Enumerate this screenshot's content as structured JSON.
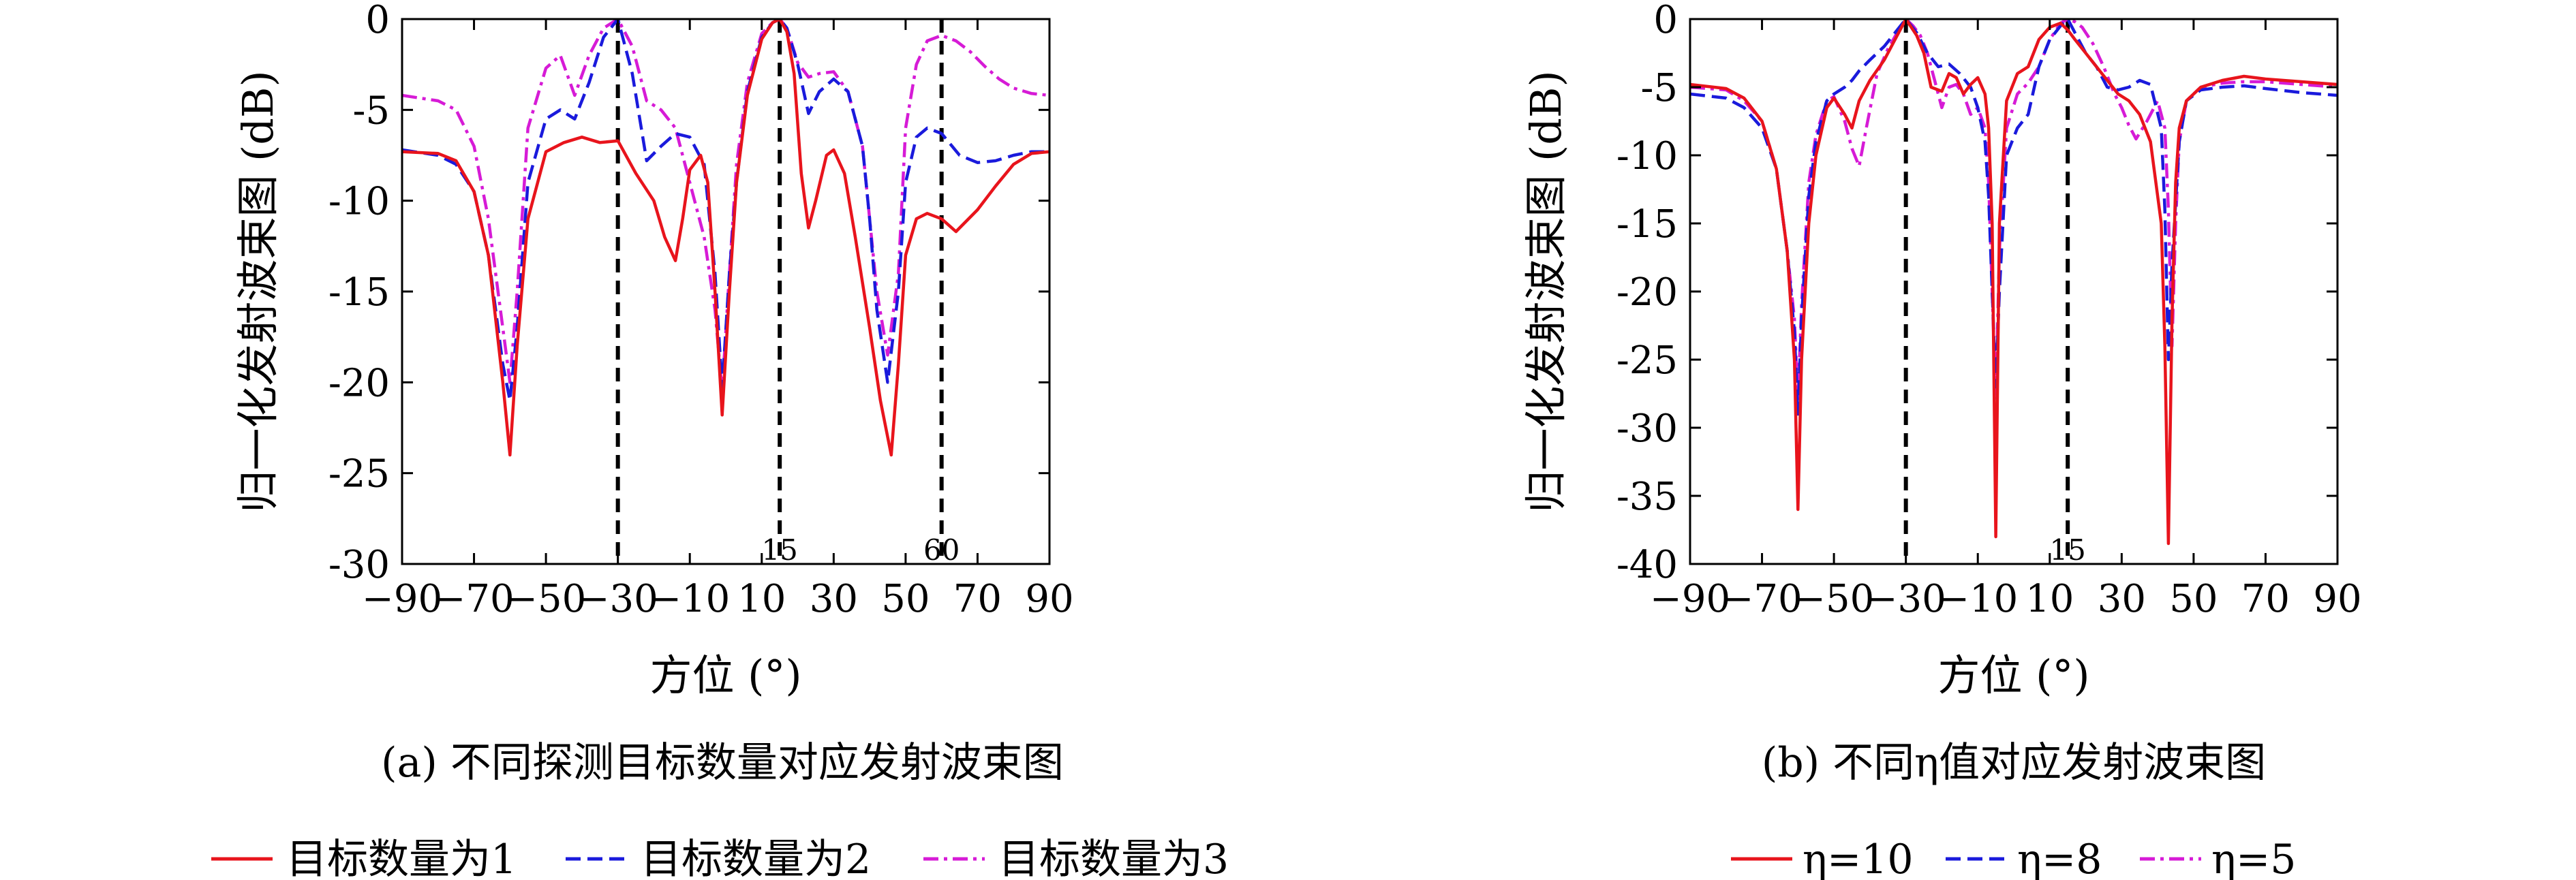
{
  "chart_data": [
    {
      "type": "line",
      "caption": "(a) 不同探测目标数量对应发射波束图",
      "xlabel": "方位 (°)",
      "ylabel": "归一化发射波束图 (dB)",
      "xlim": [
        -90,
        90
      ],
      "ylim": [
        -30,
        0
      ],
      "xticks": [
        -90,
        -70,
        -50,
        -30,
        -10,
        10,
        30,
        50,
        70,
        90
      ],
      "xtick_labels": [
        "−90",
        "−70",
        "−50",
        "−30",
        "−10",
        "10",
        "30",
        "50",
        "70",
        "90"
      ],
      "yticks": [
        0,
        -5,
        -10,
        -15,
        -20,
        -25,
        -30
      ],
      "ytick_labels": [
        "0",
        "-5",
        "-10",
        "-15",
        "-20",
        "-25",
        "-30"
      ],
      "target_lines": [
        {
          "x": -30,
          "label": ""
        },
        {
          "x": 15,
          "label": "15"
        },
        {
          "x": 60,
          "label": "60"
        }
      ],
      "series": [
        {
          "name": "目标数量为1",
          "color": "#e8141c",
          "style": "solid",
          "x": [
            -90,
            -80,
            -75,
            -70,
            -66,
            -62,
            -60,
            -58,
            -55,
            -50,
            -45,
            -40,
            -35,
            -30,
            -25,
            -20,
            -17,
            -14,
            -12,
            -10,
            -7,
            -5,
            -3,
            -1,
            1,
            3,
            6,
            10,
            13,
            15,
            17,
            19,
            21,
            23,
            25,
            28,
            30,
            33,
            36,
            40,
            43,
            46,
            48,
            50,
            53,
            56,
            60,
            64,
            70,
            75,
            80,
            85,
            90
          ],
          "y": [
            -7.3,
            -7.4,
            -7.8,
            -9.5,
            -13,
            -20,
            -24,
            -18,
            -11,
            -7.3,
            -6.8,
            -6.5,
            -6.8,
            -6.7,
            -8.5,
            -10,
            -12,
            -13.3,
            -11,
            -8.3,
            -7.5,
            -9,
            -15,
            -21.8,
            -15,
            -9,
            -4.2,
            -1.1,
            -0.2,
            0,
            -0.7,
            -3,
            -8.5,
            -11.5,
            -10,
            -7.5,
            -7.2,
            -8.5,
            -12,
            -17,
            -21,
            -24,
            -19,
            -13,
            -11,
            -10.7,
            -11,
            -11.7,
            -10.5,
            -9.2,
            -8,
            -7.4,
            -7.3
          ]
        },
        {
          "name": "目标数量为2",
          "color": "#1a1adc",
          "style": "dashed",
          "x": [
            -90,
            -80,
            -75,
            -70,
            -66,
            -62,
            -60,
            -58,
            -55,
            -50,
            -46,
            -42,
            -38,
            -34,
            -30,
            -26,
            -22,
            -18,
            -14,
            -10,
            -6,
            -3,
            -1,
            1,
            3,
            6,
            10,
            13,
            15,
            17,
            20,
            23,
            26,
            30,
            34,
            38,
            40,
            42,
            45,
            48,
            50,
            53,
            56,
            60,
            65,
            70,
            75,
            80,
            85,
            90
          ],
          "y": [
            -7.2,
            -7.5,
            -8,
            -9.5,
            -13,
            -19,
            -21,
            -17,
            -9,
            -5.5,
            -5,
            -5.5,
            -3.5,
            -1,
            0,
            -3,
            -7.8,
            -7,
            -6.3,
            -6.5,
            -8,
            -14,
            -20.3,
            -14,
            -9,
            -4,
            -1,
            -0.2,
            0,
            -0.5,
            -2.5,
            -5.2,
            -4,
            -3.3,
            -4,
            -7,
            -11,
            -16,
            -20,
            -15,
            -9,
            -6.5,
            -6,
            -6.3,
            -7.5,
            -7.9,
            -7.8,
            -7.5,
            -7.3,
            -7.3
          ]
        },
        {
          "name": "目标数量为3",
          "color": "#d61bd6",
          "style": "dashdot",
          "x": [
            -90,
            -80,
            -75,
            -70,
            -66,
            -62,
            -60,
            -58,
            -55,
            -50,
            -46,
            -42,
            -38,
            -34,
            -30,
            -26,
            -22,
            -18,
            -14,
            -10,
            -6,
            -3,
            -1,
            1,
            3,
            6,
            10,
            13,
            15,
            17,
            20,
            23,
            26,
            30,
            34,
            38,
            40,
            42,
            45,
            48,
            50,
            53,
            56,
            60,
            64,
            68,
            72,
            76,
            80,
            85,
            90
          ],
          "y": [
            -4.2,
            -4.5,
            -5,
            -7,
            -11,
            -17,
            -20,
            -15,
            -6,
            -2.7,
            -2,
            -4.2,
            -2,
            -0.5,
            0,
            -1.5,
            -4.5,
            -5,
            -6,
            -9,
            -12,
            -16,
            -20.5,
            -14,
            -8,
            -3.5,
            -0.8,
            -0.2,
            0,
            -0.5,
            -2.4,
            -3.2,
            -3,
            -2.9,
            -4,
            -7,
            -11,
            -15,
            -18.5,
            -14,
            -6,
            -2.5,
            -1.2,
            -0.9,
            -1.2,
            -1.8,
            -2.6,
            -3.3,
            -3.8,
            -4.1,
            -4.2
          ]
        }
      ]
    },
    {
      "type": "line",
      "caption": "(b) 不同η值对应发射波束图",
      "xlabel": "方位 (°)",
      "ylabel": "归一化发射波束图 (dB)",
      "xlim": [
        -90,
        90
      ],
      "ylim": [
        -40,
        0
      ],
      "xticks": [
        -90,
        -70,
        -50,
        -30,
        -10,
        10,
        30,
        50,
        70,
        90
      ],
      "xtick_labels": [
        "−90",
        "−70",
        "−50",
        "−30",
        "−10",
        "10",
        "30",
        "50",
        "70",
        "90"
      ],
      "yticks": [
        0,
        -5,
        -10,
        -15,
        -20,
        -25,
        -30,
        -35,
        -40
      ],
      "ytick_labels": [
        "0",
        "-5",
        "-10",
        "-15",
        "-20",
        "-25",
        "-30",
        "-35",
        "-40"
      ],
      "target_lines": [
        {
          "x": -30,
          "label": ""
        },
        {
          "x": 15,
          "label": "15"
        }
      ],
      "series": [
        {
          "name": "η=10",
          "color": "#e8141c",
          "style": "solid",
          "x": [
            -90,
            -80,
            -75,
            -70,
            -66,
            -63,
            -61,
            -60,
            -59,
            -57,
            -55,
            -52,
            -50,
            -47,
            -45,
            -43,
            -40,
            -36,
            -33,
            -30,
            -27,
            -25,
            -23,
            -20,
            -18,
            -16,
            -14,
            -12,
            -10,
            -8,
            -7,
            -6,
            -5,
            -4,
            -2,
            1,
            4,
            7,
            10,
            13,
            15,
            17,
            20,
            23,
            26,
            29,
            32,
            35,
            38,
            41,
            42,
            43,
            44,
            45,
            46,
            48,
            52,
            58,
            64,
            70,
            80,
            90
          ],
          "y": [
            -4.8,
            -5.1,
            -5.8,
            -7.5,
            -11,
            -17,
            -25,
            -36,
            -25,
            -15,
            -10,
            -6.5,
            -5.8,
            -7,
            -8,
            -6,
            -4.5,
            -3,
            -1.5,
            0,
            -1.2,
            -2.5,
            -5,
            -5.3,
            -4,
            -4.3,
            -5.5,
            -4.8,
            -4.3,
            -5.5,
            -8,
            -15,
            -38,
            -15,
            -6,
            -4,
            -3.5,
            -1.5,
            -0.6,
            -0.3,
            -0.8,
            -1.5,
            -2.5,
            -3.5,
            -4.5,
            -5.5,
            -6,
            -7,
            -9,
            -15,
            -24,
            -38.5,
            -22,
            -12,
            -8,
            -6,
            -5,
            -4.5,
            -4.2,
            -4.4,
            -4.6,
            -4.8
          ]
        },
        {
          "name": "η=8",
          "color": "#1a1adc",
          "style": "dashed",
          "x": [
            -90,
            -80,
            -75,
            -70,
            -66,
            -63,
            -61,
            -60,
            -59,
            -57,
            -55,
            -52,
            -50,
            -47,
            -45,
            -43,
            -40,
            -36,
            -33,
            -30,
            -27,
            -24,
            -21,
            -18,
            -15,
            -12,
            -10,
            -8,
            -7,
            -6,
            -5,
            -4,
            -2,
            1,
            4,
            7,
            10,
            13,
            15,
            17,
            20,
            23,
            26,
            29,
            32,
            35,
            38,
            41,
            42,
            43,
            44,
            46,
            48,
            52,
            58,
            64,
            70,
            80,
            90
          ],
          "y": [
            -5.5,
            -5.8,
            -6.5,
            -8,
            -11,
            -17,
            -23,
            -29,
            -22,
            -13,
            -9,
            -6,
            -5.5,
            -5,
            -4.5,
            -3.8,
            -3,
            -2,
            -1,
            0,
            -1,
            -2.5,
            -3.5,
            -3.3,
            -4,
            -5,
            -6.5,
            -9,
            -13,
            -20,
            -27,
            -20,
            -10,
            -8,
            -7,
            -3.5,
            -1.5,
            -0.5,
            0,
            -1,
            -2.5,
            -3.5,
            -5,
            -5.2,
            -5,
            -4.5,
            -4.8,
            -8,
            -14,
            -25,
            -18,
            -9,
            -6,
            -5.2,
            -5,
            -4.9,
            -5.1,
            -5.4,
            -5.6
          ]
        },
        {
          "name": "η=5",
          "color": "#d61bd6",
          "style": "dashdot",
          "x": [
            -90,
            -80,
            -75,
            -70,
            -66,
            -63,
            -61,
            -60,
            -59,
            -57,
            -55,
            -52,
            -50,
            -47,
            -45,
            -43,
            -41,
            -38,
            -35,
            -32,
            -30,
            -28,
            -26,
            -24,
            -22,
            -20,
            -18,
            -16,
            -14,
            -12,
            -10,
            -8,
            -7,
            -6,
            -5,
            -4,
            -2,
            1,
            4,
            7,
            10,
            13,
            15,
            17,
            19,
            22,
            25,
            28,
            30,
            32,
            34,
            37,
            40,
            42,
            43,
            44,
            45,
            46,
            48,
            52,
            58,
            64,
            70,
            80,
            90
          ],
          "y": [
            -5,
            -5.2,
            -6,
            -7.5,
            -11,
            -17,
            -22,
            -28,
            -21,
            -12,
            -8.5,
            -6,
            -5.7,
            -7.5,
            -9.5,
            -10.8,
            -8,
            -4,
            -2.2,
            -0.8,
            0,
            -0.5,
            -1.2,
            -2.5,
            -4.5,
            -6.5,
            -5,
            -4.8,
            -5.5,
            -7,
            -6.5,
            -8,
            -12,
            -20,
            -28,
            -17,
            -8,
            -5.5,
            -4.7,
            -3.5,
            -1.5,
            -0.3,
            0,
            -0.2,
            -0.6,
            -1.8,
            -3.5,
            -5.5,
            -6.5,
            -7.8,
            -8.8,
            -7.5,
            -6,
            -8,
            -14,
            -24,
            -15,
            -9,
            -6,
            -5,
            -4.7,
            -4.6,
            -4.6,
            -4.8,
            -5
          ]
        }
      ]
    }
  ]
}
